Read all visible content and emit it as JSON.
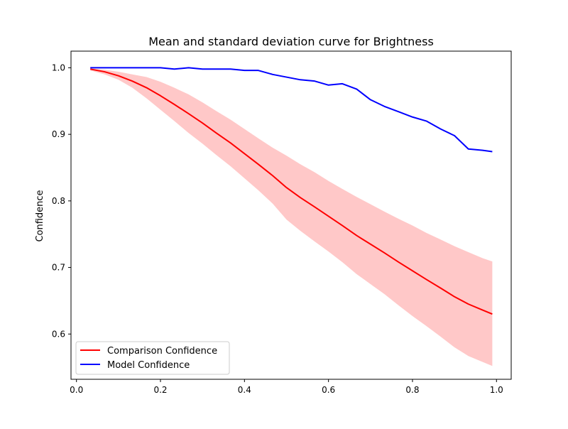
{
  "chart_data": {
    "type": "line",
    "title": "Mean and standard deviation curve for Brightness",
    "xlabel": "",
    "ylabel": "Confidence",
    "xlim": [
      -0.013,
      1.035
    ],
    "ylim": [
      0.532,
      1.025
    ],
    "xticks": [
      0.0,
      0.2,
      0.4,
      0.6,
      0.8,
      1.0
    ],
    "xtick_labels": [
      "0.0",
      "0.2",
      "0.4",
      "0.6",
      "0.8",
      "1.0"
    ],
    "yticks": [
      0.6,
      0.7,
      0.8,
      0.9,
      1.0
    ],
    "ytick_labels": [
      "0.6",
      "0.7",
      "0.8",
      "0.9",
      "1.0"
    ],
    "grid": false,
    "legend_position": "lower-left",
    "series": [
      {
        "name": "Comparison Confidence",
        "color": "#ff0000",
        "band_color": "#ffc8c8",
        "x": [
          0.033,
          0.067,
          0.1,
          0.133,
          0.167,
          0.2,
          0.233,
          0.267,
          0.3,
          0.333,
          0.367,
          0.4,
          0.433,
          0.467,
          0.5,
          0.533,
          0.567,
          0.6,
          0.633,
          0.667,
          0.7,
          0.733,
          0.767,
          0.8,
          0.833,
          0.867,
          0.9,
          0.933,
          0.967,
          0.99
        ],
        "values": [
          0.998,
          0.994,
          0.988,
          0.98,
          0.97,
          0.958,
          0.945,
          0.931,
          0.917,
          0.902,
          0.887,
          0.871,
          0.855,
          0.838,
          0.82,
          0.805,
          0.791,
          0.777,
          0.763,
          0.748,
          0.735,
          0.722,
          0.708,
          0.695,
          0.682,
          0.669,
          0.656,
          0.645,
          0.636,
          0.63
        ],
        "upper": [
          0.999,
          0.997,
          0.994,
          0.99,
          0.986,
          0.979,
          0.97,
          0.96,
          0.948,
          0.935,
          0.922,
          0.908,
          0.894,
          0.88,
          0.868,
          0.855,
          0.843,
          0.83,
          0.818,
          0.806,
          0.795,
          0.784,
          0.773,
          0.763,
          0.752,
          0.742,
          0.732,
          0.723,
          0.714,
          0.709
        ],
        "lower": [
          0.996,
          0.99,
          0.982,
          0.97,
          0.954,
          0.937,
          0.92,
          0.902,
          0.886,
          0.869,
          0.852,
          0.834,
          0.816,
          0.796,
          0.772,
          0.755,
          0.739,
          0.724,
          0.708,
          0.69,
          0.675,
          0.66,
          0.643,
          0.627,
          0.612,
          0.596,
          0.58,
          0.567,
          0.558,
          0.552
        ]
      },
      {
        "name": "Model Confidence",
        "color": "#0000ff",
        "x": [
          0.033,
          0.1,
          0.167,
          0.2,
          0.233,
          0.267,
          0.3,
          0.333,
          0.367,
          0.4,
          0.433,
          0.467,
          0.5,
          0.533,
          0.567,
          0.6,
          0.633,
          0.667,
          0.7,
          0.733,
          0.767,
          0.8,
          0.833,
          0.867,
          0.9,
          0.933,
          0.967,
          0.99
        ],
        "values": [
          1.0,
          1.0,
          1.0,
          1.0,
          0.998,
          1.0,
          0.998,
          0.998,
          0.998,
          0.996,
          0.996,
          0.99,
          0.986,
          0.982,
          0.98,
          0.974,
          0.976,
          0.968,
          0.952,
          0.942,
          0.934,
          0.926,
          0.92,
          0.908,
          0.898,
          0.878,
          0.876,
          0.874
        ]
      }
    ]
  }
}
